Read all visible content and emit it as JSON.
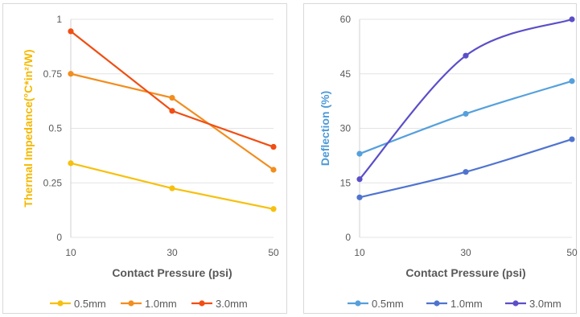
{
  "chart_data": [
    {
      "type": "line",
      "x": [
        10,
        30,
        50
      ],
      "xlabel": "Contact Pressure (psi)",
      "ylabel": "Thermal Impedance(°C*in²/W)",
      "ylabel_color": "#f5b800",
      "xlim": [
        10,
        50
      ],
      "ylim": [
        0,
        1
      ],
      "x_ticks": [
        "10",
        "30",
        "50"
      ],
      "y_ticks": [
        "0",
        "0.25",
        "0.5",
        "0.75",
        "1"
      ],
      "y_tick_values": [
        0,
        0.25,
        0.5,
        0.75,
        1
      ],
      "grid": true,
      "legend_position": "bottom",
      "smooth": false,
      "series": [
        {
          "name": "0.5mm",
          "color": "#f7c00c",
          "values": [
            0.34,
            0.225,
            0.13
          ]
        },
        {
          "name": "1.0mm",
          "color": "#f28d1e",
          "values": [
            0.75,
            0.64,
            0.31
          ]
        },
        {
          "name": "3.0mm",
          "color": "#f04e12",
          "values": [
            0.945,
            0.58,
            0.415
          ]
        }
      ]
    },
    {
      "type": "line",
      "x": [
        10,
        30,
        50
      ],
      "xlabel": "Contact Pressure (psi)",
      "ylabel": "Deflection (%)",
      "ylabel_color": "#4e9ad8",
      "xlim": [
        10,
        50
      ],
      "ylim": [
        0,
        60
      ],
      "x_ticks": [
        "10",
        "30",
        "50"
      ],
      "y_ticks": [
        "0",
        "15",
        "30",
        "45",
        "60"
      ],
      "y_tick_values": [
        0,
        15,
        30,
        45,
        60
      ],
      "grid": true,
      "legend_position": "bottom",
      "smooth": true,
      "series": [
        {
          "name": "0.5mm",
          "color": "#55a0dc",
          "values": [
            23,
            34,
            43
          ]
        },
        {
          "name": "1.0mm",
          "color": "#4f74cf",
          "values": [
            11,
            18,
            27
          ]
        },
        {
          "name": "3.0mm",
          "color": "#5b4fc8",
          "values": [
            16,
            50,
            60
          ]
        }
      ]
    }
  ]
}
